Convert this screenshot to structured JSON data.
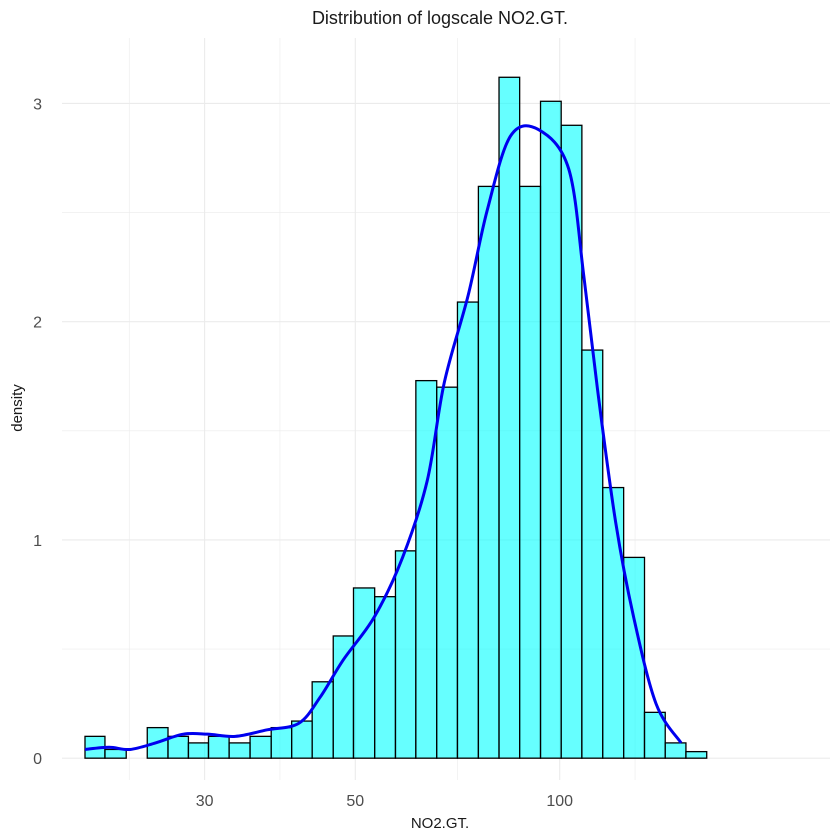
{
  "chart_data": {
    "type": "bar",
    "title": "Distribution of logscale NO2.GT.",
    "xlabel": "NO2.GT.",
    "ylabel": "density",
    "x_scale": "log10",
    "xlim": [
      18.5,
      250
    ],
    "ylim": [
      -0.1,
      3.3
    ],
    "x_ticks": [
      30,
      50,
      100
    ],
    "y_ticks": [
      0,
      1,
      2,
      3
    ],
    "grid": true,
    "colors": {
      "bar_fill": "#00ffff",
      "bar_outline": "#000000",
      "density_line": "#0000ee",
      "grid": "#ebebeb"
    },
    "bins": [
      {
        "x0": 20.0,
        "x1": 21.4,
        "density": 0.1
      },
      {
        "x0": 21.4,
        "x1": 23.0,
        "density": 0.04
      },
      {
        "x0": 23.0,
        "x1": 24.7,
        "density": 0.0
      },
      {
        "x0": 24.7,
        "x1": 26.5,
        "density": 0.14
      },
      {
        "x0": 26.5,
        "x1": 28.4,
        "density": 0.1
      },
      {
        "x0": 28.4,
        "x1": 30.4,
        "density": 0.07
      },
      {
        "x0": 30.4,
        "x1": 32.6,
        "density": 0.1
      },
      {
        "x0": 32.6,
        "x1": 35.0,
        "density": 0.07
      },
      {
        "x0": 35.0,
        "x1": 37.6,
        "density": 0.1
      },
      {
        "x0": 37.6,
        "x1": 40.3,
        "density": 0.14
      },
      {
        "x0": 40.3,
        "x1": 43.2,
        "density": 0.17
      },
      {
        "x0": 43.2,
        "x1": 46.4,
        "density": 0.35
      },
      {
        "x0": 46.4,
        "x1": 49.7,
        "density": 0.56
      },
      {
        "x0": 49.7,
        "x1": 53.4,
        "density": 0.78
      },
      {
        "x0": 53.4,
        "x1": 57.3,
        "density": 0.74
      },
      {
        "x0": 57.3,
        "x1": 61.4,
        "density": 0.95
      },
      {
        "x0": 61.4,
        "x1": 65.9,
        "density": 1.73
      },
      {
        "x0": 65.9,
        "x1": 70.7,
        "density": 1.7
      },
      {
        "x0": 70.7,
        "x1": 75.9,
        "density": 2.09
      },
      {
        "x0": 75.9,
        "x1": 81.4,
        "density": 2.62
      },
      {
        "x0": 81.4,
        "x1": 87.3,
        "density": 3.12
      },
      {
        "x0": 87.3,
        "x1": 93.7,
        "density": 2.62
      },
      {
        "x0": 93.7,
        "x1": 100.5,
        "density": 3.01
      },
      {
        "x0": 100.5,
        "x1": 107.8,
        "density": 2.9
      },
      {
        "x0": 107.8,
        "x1": 115.7,
        "density": 1.87
      },
      {
        "x0": 115.7,
        "x1": 124.2,
        "density": 1.24
      },
      {
        "x0": 124.2,
        "x1": 133.3,
        "density": 0.92
      },
      {
        "x0": 133.3,
        "x1": 143.0,
        "density": 0.21
      },
      {
        "x0": 143.0,
        "x1": 153.4,
        "density": 0.07
      },
      {
        "x0": 153.4,
        "x1": 164.6,
        "density": 0.03
      }
    ],
    "density_curve": [
      {
        "x": 20.0,
        "y": 0.04
      },
      {
        "x": 21.7,
        "y": 0.05
      },
      {
        "x": 23.3,
        "y": 0.04
      },
      {
        "x": 25.4,
        "y": 0.07
      },
      {
        "x": 27.9,
        "y": 0.11
      },
      {
        "x": 30.3,
        "y": 0.11
      },
      {
        "x": 33.3,
        "y": 0.1
      },
      {
        "x": 37.1,
        "y": 0.13
      },
      {
        "x": 41.3,
        "y": 0.16
      },
      {
        "x": 44.4,
        "y": 0.28
      },
      {
        "x": 48.0,
        "y": 0.45
      },
      {
        "x": 53.4,
        "y": 0.65
      },
      {
        "x": 58.7,
        "y": 0.92
      },
      {
        "x": 63.8,
        "y": 1.27
      },
      {
        "x": 67.6,
        "y": 1.72
      },
      {
        "x": 73.3,
        "y": 2.12
      },
      {
        "x": 78.2,
        "y": 2.51
      },
      {
        "x": 84.6,
        "y": 2.85
      },
      {
        "x": 93.1,
        "y": 2.88
      },
      {
        "x": 103.1,
        "y": 2.7
      },
      {
        "x": 108.6,
        "y": 2.2
      },
      {
        "x": 114.1,
        "y": 1.65
      },
      {
        "x": 120.9,
        "y": 1.08
      },
      {
        "x": 128.4,
        "y": 0.65
      },
      {
        "x": 138.6,
        "y": 0.25
      },
      {
        "x": 150.9,
        "y": 0.07
      }
    ]
  }
}
